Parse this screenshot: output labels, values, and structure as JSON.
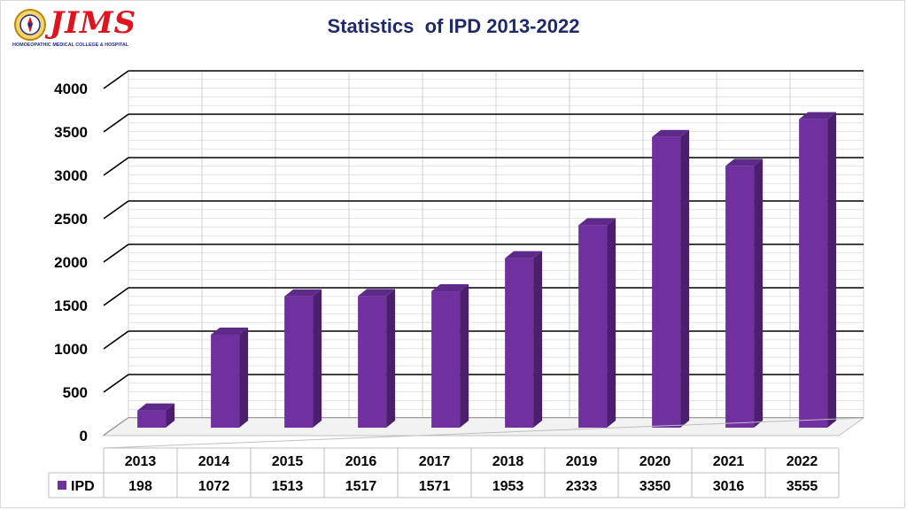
{
  "logo": {
    "name": "JIMS",
    "subtitle": "HOMOEOPATHIC MEDICAL COLLEGE & HOSPITAL",
    "icon": "institution-emblem-icon"
  },
  "colors": {
    "bar_front": "#7030a0",
    "bar_side": "#4b1f6e",
    "bar_top": "#5e2a8a",
    "title": "#1f2a6b",
    "logo_red": "#e0141e",
    "logo_blue": "#1f2c8a"
  },
  "chart_data": {
    "type": "bar",
    "title": "Statistics  of IPD 2013-2022",
    "xlabel": "",
    "ylabel": "",
    "categories": [
      "2013",
      "2014",
      "2015",
      "2016",
      "2017",
      "2018",
      "2019",
      "2020",
      "2021",
      "2022"
    ],
    "series": [
      {
        "name": "IPD",
        "values": [
          198,
          1072,
          1513,
          1517,
          1571,
          1953,
          2333,
          3350,
          3016,
          3555
        ]
      }
    ],
    "ylim": [
      0,
      4000
    ],
    "yticks": [
      "0",
      "500",
      "1000",
      "1500",
      "2000",
      "2500",
      "3000",
      "3500",
      "4000"
    ],
    "grid": true,
    "style": "3d-column",
    "data_table": true,
    "legend_placement": "data-table-left"
  }
}
